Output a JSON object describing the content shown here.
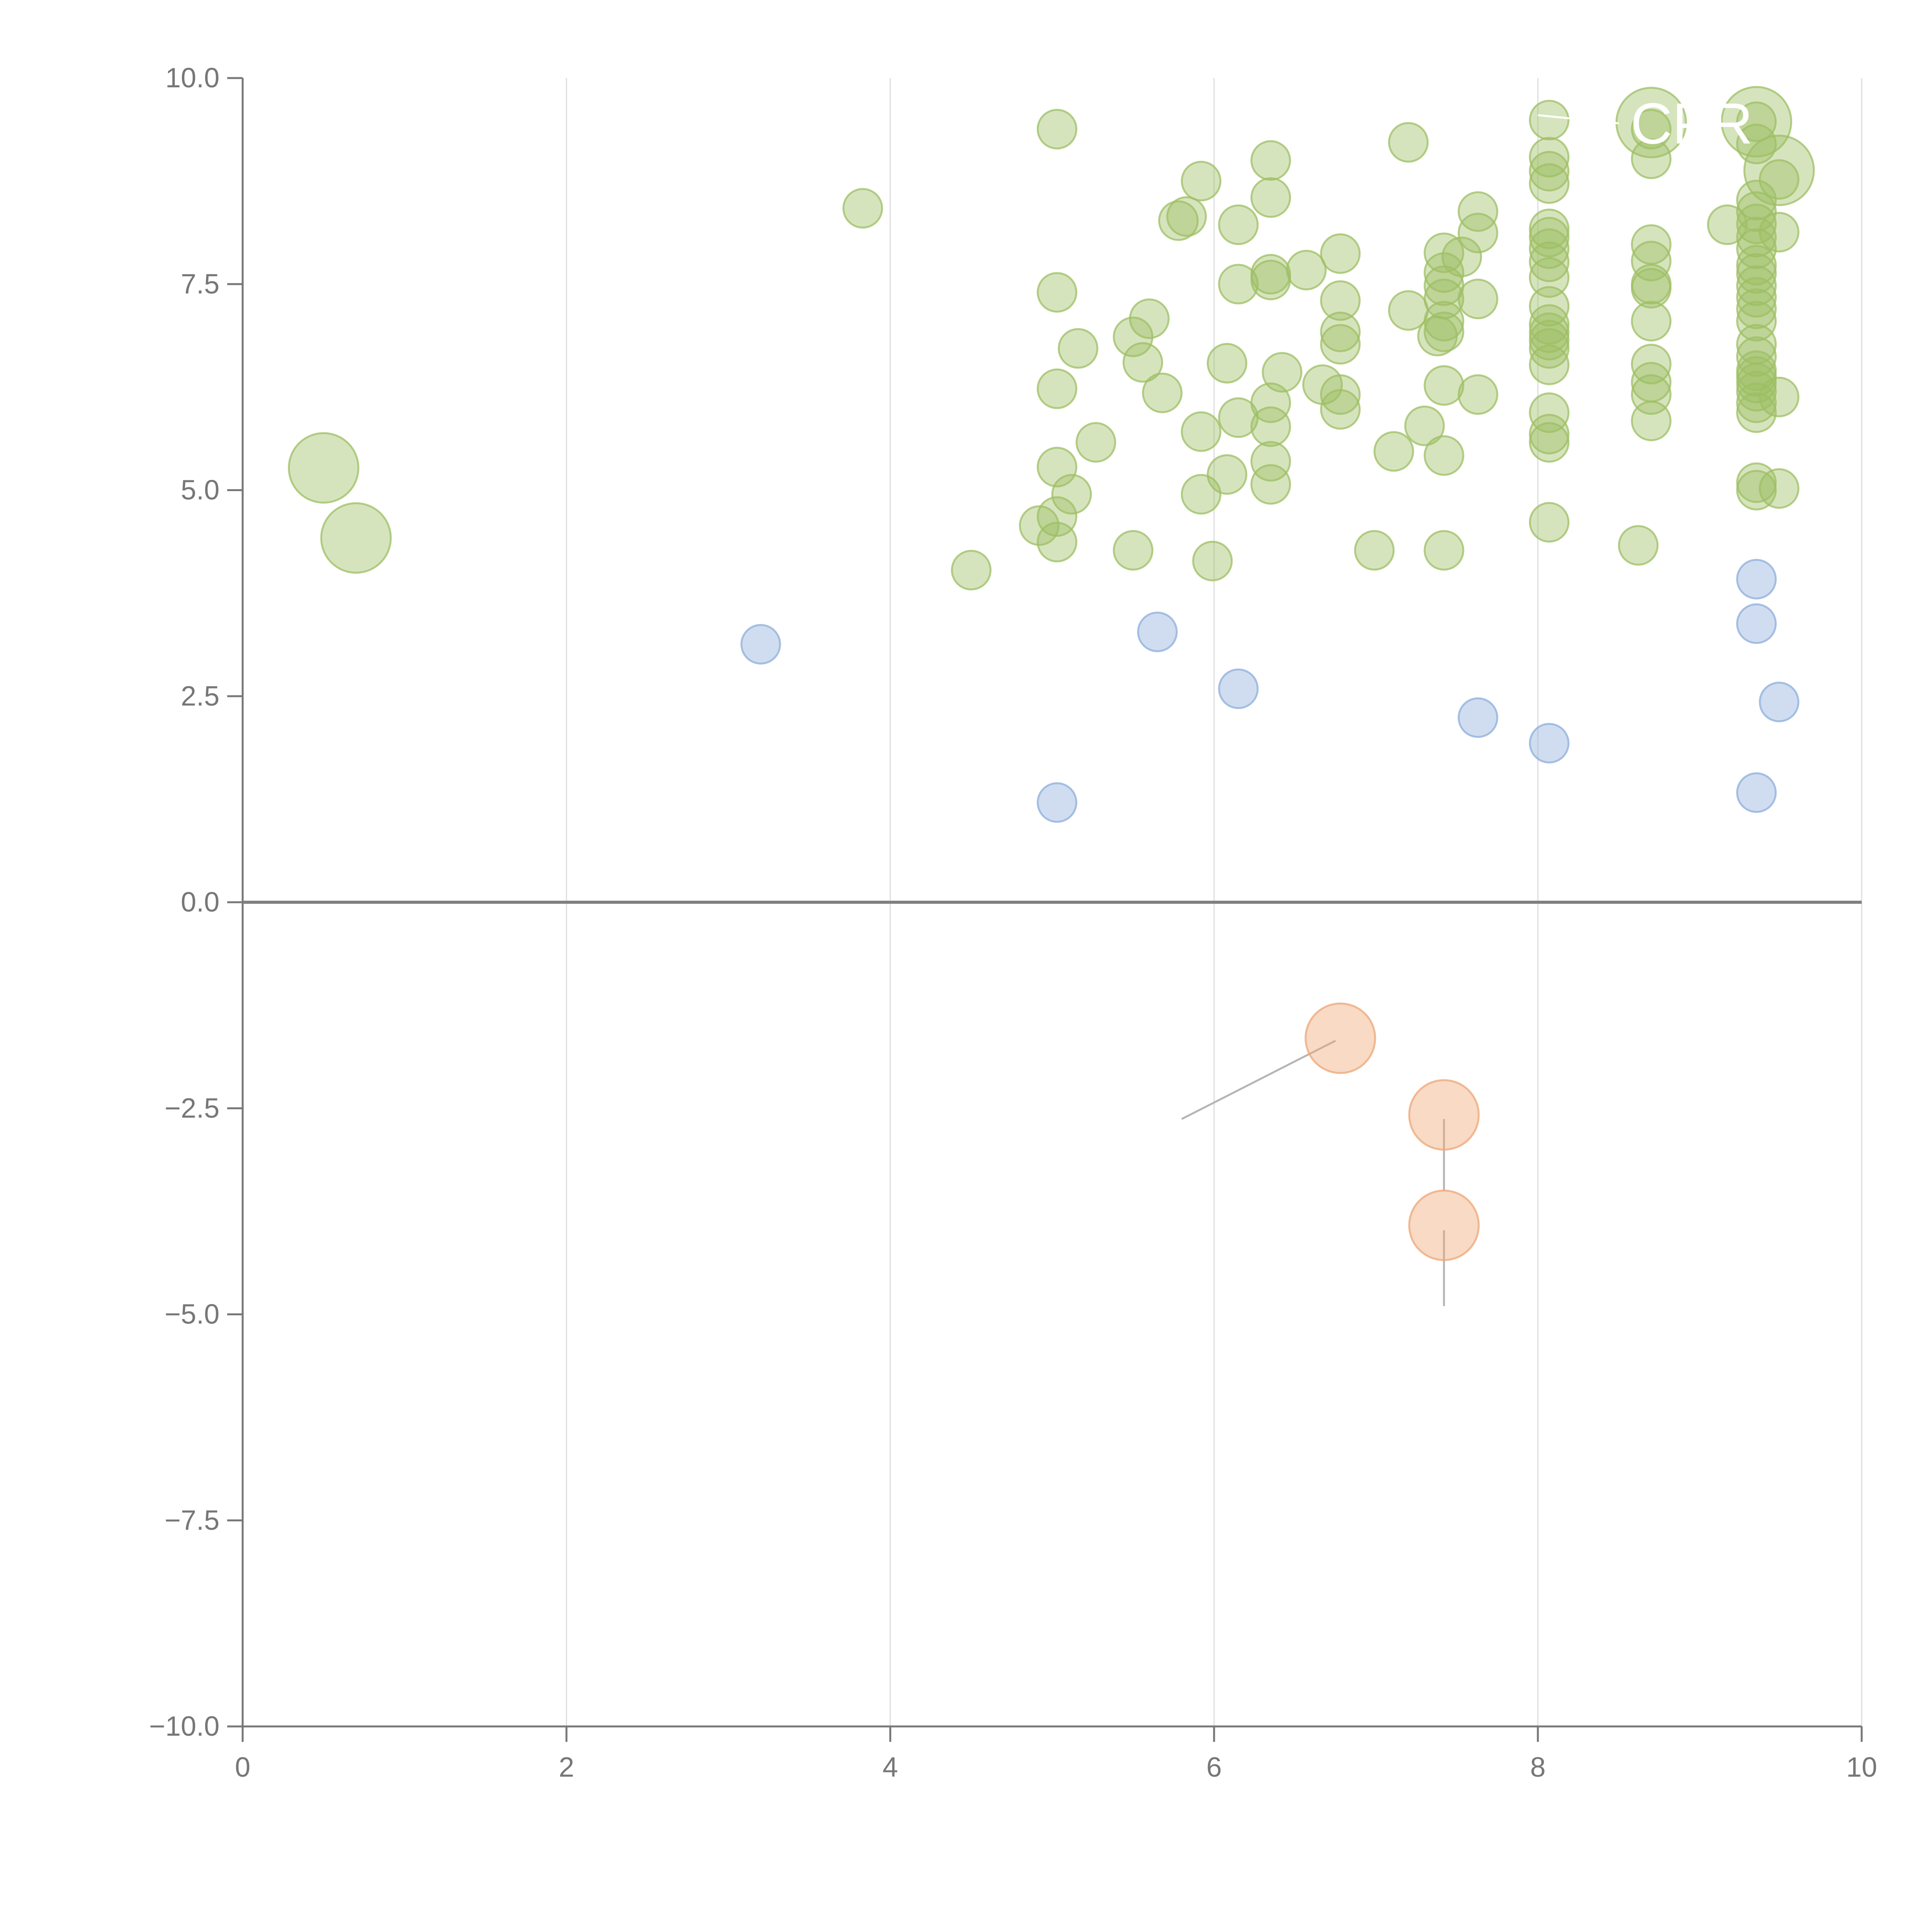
{
  "chart_data": {
    "type": "scatter",
    "title": "",
    "xlabel": "",
    "ylabel": "",
    "xlim": [
      0,
      10
    ],
    "ylim": [
      -10,
      10
    ],
    "x_ticks": [
      0,
      2,
      4,
      6,
      8,
      10
    ],
    "x_tick_labels": [
      "0",
      "2",
      "4",
      "6",
      "8",
      "10"
    ],
    "y_ticks": [
      10,
      7.5,
      5,
      2.5,
      0,
      -2.5,
      -5,
      -7.5,
      -10
    ],
    "y_tick_labels": [
      "10.0",
      "7.5",
      "5.0",
      "2.5",
      "0.0",
      "−2.5",
      "−5.0",
      "−7.5",
      "−10.0"
    ],
    "grid": "vertical",
    "legend": "none",
    "zero_line": true,
    "colors": {
      "green": "#9dbf63",
      "blue": "#8eaddb",
      "orange": "#eea675",
      "axis": "#777777",
      "grid": "#dddddd",
      "zero_line": "#808080",
      "leader": "#b5b5b5"
    },
    "series": [
      {
        "color": "green",
        "points": [
          [
            0.5,
            5.27,
            2
          ],
          [
            0.7,
            4.42,
            2
          ],
          [
            3.83,
            8.42,
            1
          ],
          [
            4.5,
            4.03,
            1
          ],
          [
            4.92,
            4.57,
            1
          ],
          [
            5.03,
            9.38,
            1
          ],
          [
            5.03,
            7.4,
            1
          ],
          [
            5.03,
            6.23,
            1
          ],
          [
            5.03,
            5.28,
            1
          ],
          [
            5.03,
            4.68,
            1
          ],
          [
            5.03,
            4.37,
            1
          ],
          [
            5.12,
            4.95,
            1
          ],
          [
            5.16,
            6.72,
            1
          ],
          [
            5.27,
            5.58,
            1
          ],
          [
            5.5,
            6.86,
            1
          ],
          [
            5.5,
            4.27,
            1
          ],
          [
            5.56,
            6.55,
            1
          ],
          [
            5.6,
            7.08,
            1
          ],
          [
            5.68,
            6.18,
            1
          ],
          [
            5.78,
            8.27,
            1
          ],
          [
            5.83,
            8.32,
            1
          ],
          [
            5.92,
            8.75,
            1
          ],
          [
            5.92,
            5.71,
            1
          ],
          [
            5.92,
            4.95,
            1
          ],
          [
            5.99,
            4.14,
            1
          ],
          [
            6.08,
            6.54,
            1
          ],
          [
            6.08,
            5.19,
            1
          ],
          [
            6.15,
            8.22,
            1
          ],
          [
            6.15,
            7.5,
            1
          ],
          [
            6.15,
            5.88,
            1
          ],
          [
            6.35,
            9.0,
            1
          ],
          [
            6.35,
            8.55,
            1
          ],
          [
            6.35,
            7.62,
            1
          ],
          [
            6.35,
            7.55,
            1
          ],
          [
            6.35,
            6.06,
            1
          ],
          [
            6.35,
            5.77,
            1
          ],
          [
            6.35,
            5.35,
            1
          ],
          [
            6.35,
            5.07,
            1
          ],
          [
            6.42,
            6.43,
            1
          ],
          [
            6.57,
            7.67,
            1
          ],
          [
            6.67,
            6.28,
            1
          ],
          [
            6.78,
            7.87,
            1
          ],
          [
            6.78,
            7.3,
            1
          ],
          [
            6.78,
            6.92,
            1
          ],
          [
            6.78,
            6.77,
            1
          ],
          [
            6.78,
            6.16,
            1
          ],
          [
            6.78,
            5.98,
            1
          ],
          [
            6.99,
            4.27,
            1
          ],
          [
            7.11,
            5.47,
            1
          ],
          [
            7.2,
            9.22,
            1
          ],
          [
            7.2,
            7.18,
            1
          ],
          [
            7.3,
            5.78,
            1
          ],
          [
            7.38,
            6.87,
            1
          ],
          [
            7.42,
            7.88,
            1
          ],
          [
            7.42,
            7.64,
            1
          ],
          [
            7.42,
            7.48,
            1
          ],
          [
            7.42,
            7.32,
            1
          ],
          [
            7.42,
            7.05,
            1
          ],
          [
            7.42,
            6.92,
            1
          ],
          [
            7.42,
            6.27,
            1
          ],
          [
            7.42,
            5.42,
            1
          ],
          [
            7.42,
            4.27,
            1
          ],
          [
            7.53,
            7.83,
            1
          ],
          [
            7.63,
            8.38,
            1
          ],
          [
            7.63,
            8.12,
            1
          ],
          [
            7.63,
            7.32,
            1
          ],
          [
            7.63,
            6.16,
            1
          ],
          [
            8.07,
            9.49,
            1
          ],
          [
            8.07,
            9.04,
            1
          ],
          [
            8.07,
            8.87,
            1
          ],
          [
            8.07,
            8.72,
            1
          ],
          [
            8.07,
            8.17,
            1
          ],
          [
            8.07,
            8.07,
            1
          ],
          [
            8.07,
            7.93,
            1
          ],
          [
            8.07,
            7.77,
            1
          ],
          [
            8.07,
            7.58,
            1
          ],
          [
            8.07,
            7.23,
            1
          ],
          [
            8.07,
            7.01,
            1
          ],
          [
            8.07,
            6.91,
            1
          ],
          [
            8.07,
            6.82,
            1
          ],
          [
            8.07,
            6.72,
            1
          ],
          [
            8.07,
            6.52,
            1
          ],
          [
            8.07,
            5.94,
            1
          ],
          [
            8.07,
            5.68,
            1
          ],
          [
            8.07,
            5.58,
            1
          ],
          [
            8.07,
            4.61,
            1
          ],
          [
            8.62,
            4.33,
            1
          ],
          [
            8.7,
            9.46,
            2
          ],
          [
            8.7,
            9.38,
            1
          ],
          [
            8.7,
            9.02,
            1
          ],
          [
            8.7,
            7.98,
            1
          ],
          [
            8.7,
            7.78,
            1
          ],
          [
            8.7,
            7.5,
            1
          ],
          [
            8.7,
            7.45,
            1
          ],
          [
            8.7,
            7.05,
            1
          ],
          [
            8.7,
            6.53,
            1
          ],
          [
            8.7,
            6.31,
            1
          ],
          [
            8.7,
            6.16,
            1
          ],
          [
            8.7,
            5.84,
            1
          ],
          [
            9.17,
            8.22,
            1
          ],
          [
            9.35,
            9.47,
            2
          ],
          [
            9.35,
            9.47,
            1
          ],
          [
            9.35,
            9.2,
            1
          ],
          [
            9.35,
            8.52,
            1
          ],
          [
            9.35,
            8.38,
            1
          ],
          [
            9.35,
            8.23,
            1
          ],
          [
            9.35,
            8.07,
            1
          ],
          [
            9.35,
            7.93,
            1
          ],
          [
            9.35,
            7.73,
            1
          ],
          [
            9.35,
            7.63,
            1
          ],
          [
            9.35,
            7.48,
            1
          ],
          [
            9.35,
            7.34,
            1
          ],
          [
            9.35,
            7.2,
            1
          ],
          [
            9.35,
            7.05,
            1
          ],
          [
            9.35,
            6.77,
            1
          ],
          [
            9.35,
            6.62,
            1
          ],
          [
            9.35,
            6.45,
            1
          ],
          [
            9.35,
            6.38,
            1
          ],
          [
            9.35,
            6.3,
            1
          ],
          [
            9.35,
            6.2,
            1
          ],
          [
            9.35,
            6.06,
            1
          ],
          [
            9.35,
            5.94,
            1
          ],
          [
            9.35,
            5.09,
            1
          ],
          [
            9.35,
            5.0,
            1
          ],
          [
            9.49,
            8.88,
            2
          ],
          [
            9.49,
            8.77,
            1
          ],
          [
            9.49,
            8.13,
            1
          ],
          [
            9.49,
            6.13,
            1
          ],
          [
            9.49,
            5.02,
            1
          ]
        ]
      },
      {
        "color": "blue",
        "points": [
          [
            3.2,
            3.13,
            1
          ],
          [
            5.03,
            1.21,
            1
          ],
          [
            5.65,
            3.28,
            1
          ],
          [
            6.15,
            2.59,
            1
          ],
          [
            7.63,
            2.24,
            1
          ],
          [
            8.07,
            1.93,
            1
          ],
          [
            9.35,
            3.92,
            1
          ],
          [
            9.35,
            3.38,
            1
          ],
          [
            9.49,
            2.43,
            1
          ],
          [
            9.35,
            1.33,
            1
          ]
        ]
      },
      {
        "color": "orange",
        "points": [
          [
            6.78,
            -1.65,
            2
          ],
          [
            7.42,
            -2.58,
            2
          ],
          [
            7.42,
            -3.92,
            2
          ]
        ]
      }
    ],
    "annotations": [
      {
        "text": "CPR",
        "x": 8.95,
        "y": 9.45,
        "line": [
          [
            8.0,
            9.55
          ],
          [
            8.5,
            9.45
          ]
        ]
      }
    ],
    "leader_lines": [
      {
        "color": "leader",
        "line": [
          [
            5.8,
            -2.63
          ],
          [
            6.75,
            -1.68
          ]
        ]
      },
      {
        "color": "leader",
        "line": [
          [
            7.42,
            -2.63
          ],
          [
            7.42,
            -3.5
          ]
        ]
      },
      {
        "color": "leader",
        "line": [
          [
            7.42,
            -3.98
          ],
          [
            7.42,
            -4.9
          ]
        ]
      },
      {
        "color": "white",
        "line": [
          [
            9.26,
            7.3
          ],
          [
            9.45,
            8.78
          ]
        ]
      },
      {
        "color": "white",
        "line": [
          [
            0.75,
            4.42
          ],
          [
            0.95,
            4.47
          ]
        ]
      }
    ]
  }
}
